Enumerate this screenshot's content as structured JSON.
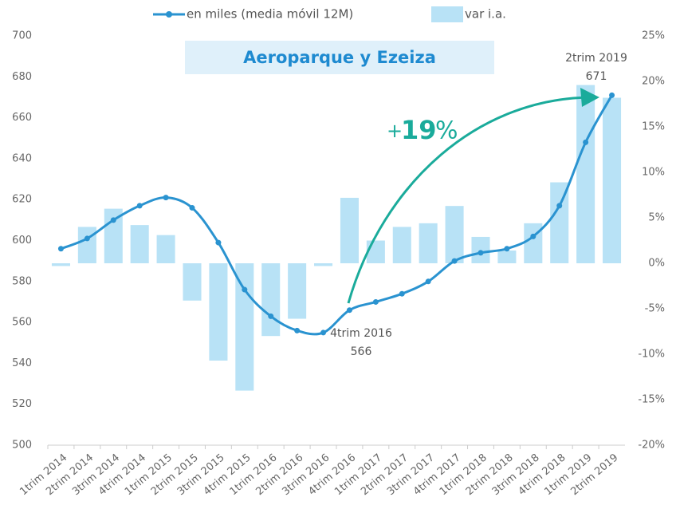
{
  "chart_data": {
    "type": "bar-line",
    "title": "Aeroparque y Ezeiza",
    "categories": [
      "1trim 2014",
      "2trim 2014",
      "3trim 2014",
      "4trim 2014",
      "1trim 2015",
      "2trim 2015",
      "3trim 2015",
      "4trim 2015",
      "1trim 2016",
      "2trim 2016",
      "3trim 2016",
      "4trim 2016",
      "1trim 2017",
      "2trim 2017",
      "3trim 2017",
      "4trim 2017",
      "1trim 2018",
      "2trim 2018",
      "3trim 2018",
      "4trim 2018",
      "1trim 2019",
      "2trim 2019"
    ],
    "series": [
      {
        "name": "en miles (media móvil 12M)",
        "type": "line",
        "color": "#2a93d0",
        "values": [
          596,
          601,
          610,
          617,
          621,
          616,
          599,
          576,
          563,
          556,
          555,
          566,
          570,
          574,
          580,
          590,
          594,
          596,
          602,
          617,
          648,
          671
        ]
      },
      {
        "name": "var i.a.",
        "type": "bar",
        "axis": "y2",
        "color": "#b8e2f6",
        "values": [
          -0.3,
          4.0,
          6.0,
          4.2,
          3.1,
          -4.1,
          -10.7,
          -14.0,
          -8.0,
          -6.1,
          -0.3,
          7.2,
          2.5,
          4.0,
          4.4,
          6.3,
          2.9,
          1.4,
          4.4,
          8.9,
          19.6,
          18.2
        ]
      }
    ],
    "ylim": [
      500,
      700
    ],
    "yticks": [
      500,
      520,
      540,
      560,
      580,
      600,
      620,
      640,
      660,
      680,
      700
    ],
    "y2lim": [
      -20,
      25
    ],
    "y2ticks": [
      {
        "value": -20,
        "label": "-20%"
      },
      {
        "value": -15,
        "label": "-15%"
      },
      {
        "value": -10,
        "label": "-10%"
      },
      {
        "value": -5,
        "label": "-5%"
      },
      {
        "value": 0,
        "label": "0%"
      },
      {
        "value": 5,
        "label": "5%"
      },
      {
        "value": 10,
        "label": "10%"
      },
      {
        "value": 15,
        "label": "15%"
      },
      {
        "value": 20,
        "label": "20%"
      },
      {
        "value": 25,
        "label": "25%"
      }
    ],
    "annotations": [
      {
        "category": "2trim 2019",
        "value": "671"
      },
      {
        "category": "4trim 2016",
        "value": "566"
      }
    ],
    "growth": {
      "sign": "+",
      "number": "19",
      "unit": "%"
    }
  }
}
